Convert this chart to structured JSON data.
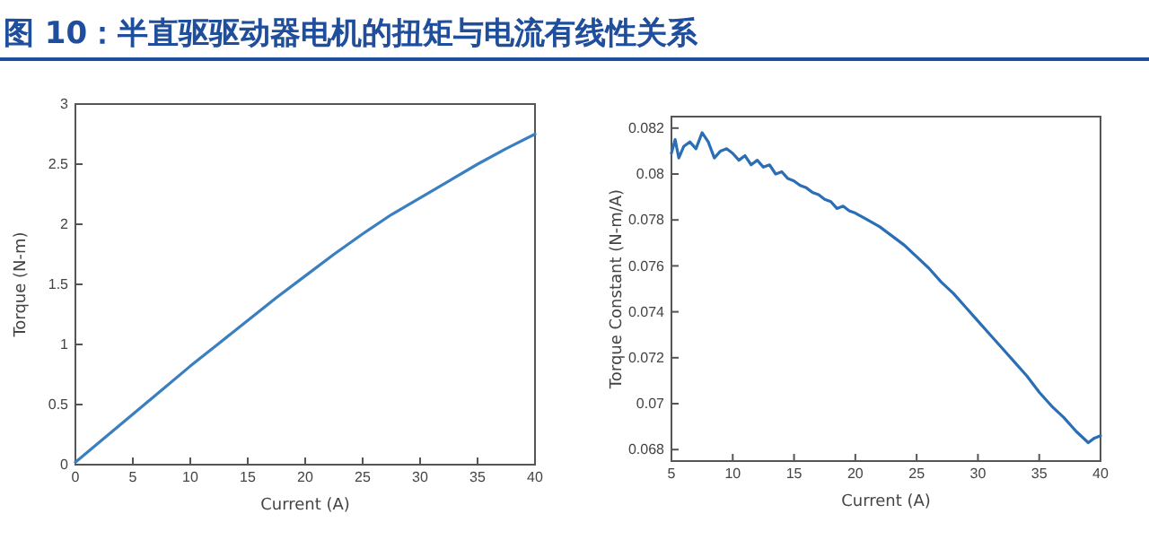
{
  "chart_data": [
    {
      "type": "line",
      "title": "图 10：半直驱驱动器电机的扭矩与电流有线性关系",
      "xlabel": "Current (A)",
      "ylabel": "Torque (N-m)",
      "xlim": [
        0,
        40
      ],
      "ylim": [
        0,
        3
      ],
      "xticks": [
        0,
        5,
        10,
        15,
        20,
        25,
        30,
        35,
        40
      ],
      "yticks": [
        0,
        0.5,
        1,
        1.5,
        2,
        2.5,
        3
      ],
      "grid": false,
      "marker": "none",
      "line_style": "solid",
      "series": [
        {
          "color": "#3a7fbf",
          "x": [
            0,
            2.5,
            5,
            7.5,
            10,
            12.5,
            15,
            17.5,
            20,
            22.5,
            25,
            27.5,
            30,
            32.5,
            35,
            37.5,
            40
          ],
          "values": [
            0.02,
            0.22,
            0.42,
            0.62,
            0.82,
            1.01,
            1.2,
            1.39,
            1.57,
            1.75,
            1.92,
            2.08,
            2.22,
            2.36,
            2.5,
            2.63,
            2.75
          ]
        }
      ]
    },
    {
      "type": "line",
      "xlabel": "Current (A)",
      "ylabel": "Torque Constant (N-m/A)",
      "xlim": [
        5,
        40
      ],
      "ylim": [
        0.0675,
        0.0825
      ],
      "xticks": [
        5,
        10,
        15,
        20,
        25,
        30,
        35,
        40
      ],
      "yticks": [
        0.068,
        0.07,
        0.072,
        0.074,
        0.076,
        0.078,
        0.08,
        0.082
      ],
      "grid": false,
      "marker": "none",
      "line_style": "solid",
      "series": [
        {
          "color": "#2a6fb5",
          "x": [
            5,
            5.3,
            5.6,
            6,
            6.5,
            7,
            7.5,
            8,
            8.5,
            9,
            9.5,
            10,
            10.5,
            11,
            11.5,
            12,
            12.5,
            13,
            13.5,
            14,
            14.5,
            15,
            15.5,
            16,
            16.5,
            17,
            17.5,
            18,
            18.5,
            19,
            19.5,
            20,
            21,
            22,
            23,
            24,
            25,
            26,
            27,
            28,
            29,
            30,
            31,
            32,
            33,
            34,
            35,
            36,
            37,
            38,
            39,
            39.5,
            40
          ],
          "values": [
            0.0809,
            0.0815,
            0.0807,
            0.0812,
            0.0814,
            0.0811,
            0.0818,
            0.0814,
            0.0807,
            0.081,
            0.0811,
            0.0809,
            0.0806,
            0.0808,
            0.0804,
            0.0806,
            0.0803,
            0.0804,
            0.08,
            0.0801,
            0.0798,
            0.0797,
            0.0795,
            0.0794,
            0.0792,
            0.0791,
            0.0789,
            0.0788,
            0.0785,
            0.0786,
            0.0784,
            0.0783,
            0.078,
            0.0777,
            0.0773,
            0.0769,
            0.0764,
            0.0759,
            0.0753,
            0.0748,
            0.0742,
            0.0736,
            0.073,
            0.0724,
            0.0718,
            0.0712,
            0.0705,
            0.0699,
            0.0694,
            0.0688,
            0.0683,
            0.0685,
            0.0686
          ]
        }
      ]
    }
  ]
}
